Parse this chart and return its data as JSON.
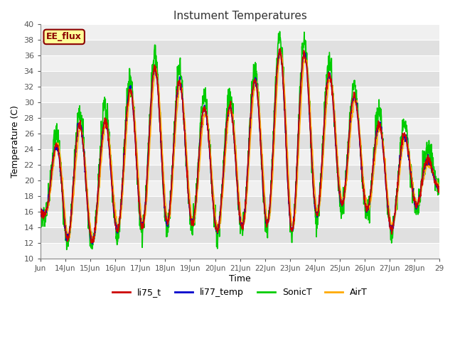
{
  "title": "Instument Temperatures",
  "ylabel": "Temperature (C)",
  "xlabel": "Time",
  "ylim": [
    10,
    40
  ],
  "background_color": "#f0f0f0",
  "plot_bg_color": "#f0f0f0",
  "ee_flux_label": "EE_flux",
  "series": {
    "li75_t": {
      "color": "#cc0000",
      "lw": 1.2
    },
    "li77_temp": {
      "color": "#0000cc",
      "lw": 1.2
    },
    "SonicT": {
      "color": "#00cc00",
      "lw": 1.2
    },
    "AirT": {
      "color": "#ffaa00",
      "lw": 1.2
    }
  },
  "xtick_labels": [
    "Jun",
    "14Jun",
    "15Jun",
    "16Jun",
    "17Jun",
    "18Jun",
    "19Jun",
    "20Jun",
    "21Jun",
    "22Jun",
    "23Jun",
    "24Jun",
    "25Jun",
    "26Jun",
    "27Jun",
    "28Jun",
    "29"
  ],
  "legend_labels": [
    "li75_t",
    "li77_temp",
    "SonicT",
    "AirT"
  ],
  "legend_colors": [
    "#cc0000",
    "#0000cc",
    "#00cc00",
    "#ffaa00"
  ],
  "stripe_color_even": "#f0f0f0",
  "stripe_color_odd": "#e0e0e0"
}
